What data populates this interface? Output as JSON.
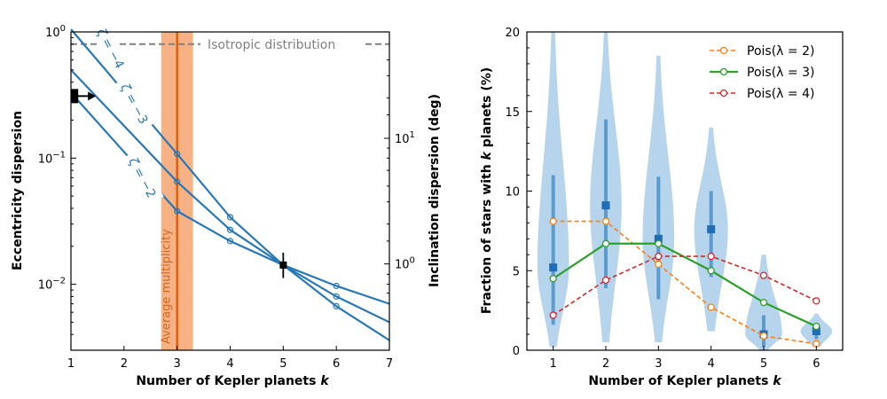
{
  "colors": {
    "blue": "#2878b5",
    "orange": "#ff7f0e",
    "green": "#2ca02c",
    "red": "#d62728",
    "gray": "#808080",
    "band": "#f4a46e",
    "band_line": "#e06010",
    "violin": "#a9cde8",
    "violin_dark": "#5b9bd0",
    "violin_marker": "#1f6db5"
  },
  "chart_data": [
    {
      "type": "line",
      "xlabel": "Number of Kepler planets k",
      "ylabel": "Eccentricity dispersion",
      "ylabel_right": "Inclination dispersion (deg)",
      "xlim": [
        1,
        7
      ],
      "ylim": [
        0.003,
        1
      ],
      "yscale": "log",
      "x_ticks": [
        "1",
        "2",
        "3",
        "4",
        "5",
        "6",
        "7"
      ],
      "y_ticks": [
        {
          "value": 0.01,
          "base": "10",
          "exp": "−2"
        },
        {
          "value": 0.1,
          "base": "10",
          "exp": "−1"
        },
        {
          "value": 1,
          "base": "10",
          "exp": "0"
        }
      ],
      "y_right_ticks": [
        {
          "value": 0.0145,
          "base": "10",
          "exp": "0"
        },
        {
          "value": 0.1435,
          "base": "10",
          "exp": "1"
        }
      ],
      "series": [
        {
          "name": "ζ = −4",
          "zeta": "−4",
          "x": [
            1,
            3,
            4,
            5,
            6,
            7
          ],
          "y": [
            1.05,
            0.108,
            0.034,
            0.0142,
            0.0067,
            0.0036
          ],
          "label_pos": [
            1.75,
            0.74
          ]
        },
        {
          "name": "ζ = −3",
          "zeta": "−3",
          "x": [
            1,
            3,
            4,
            5,
            6,
            7
          ],
          "y": [
            0.5,
            0.065,
            0.027,
            0.0142,
            0.008,
            0.005
          ],
          "label_pos": [
            2.2,
            0.27
          ]
        },
        {
          "name": "ζ = −2",
          "zeta": "−2",
          "x": [
            1,
            3,
            4,
            5,
            6,
            7
          ],
          "y": [
            0.33,
            0.038,
            0.022,
            0.0142,
            0.0097,
            0.007
          ],
          "label_pos": [
            2.35,
            0.07
          ]
        }
      ],
      "isotropic": {
        "y": 0.8,
        "label": "Isotropic distribution"
      },
      "average_band": {
        "x_min": 2.7,
        "x_max": 3.3,
        "x": 3.0,
        "label": "Average multiplicity"
      },
      "point_k1": {
        "x": 1.07,
        "y": 0.31
      },
      "point_k5": {
        "x": 5.0,
        "y": 0.0142,
        "err_low": 0.0112,
        "err_high": 0.0178
      }
    },
    {
      "type": "violin",
      "xlabel": "Number of Kepler planets k",
      "ylabel": "Fraction of stars with k planets (%)",
      "xlim": [
        0.5,
        6.5
      ],
      "ylim": [
        0,
        20
      ],
      "x_ticks": [
        "1",
        "2",
        "3",
        "4",
        "5",
        "6"
      ],
      "y_ticks": [
        "0",
        "5",
        "10",
        "15",
        "20"
      ],
      "categories": [
        1,
        2,
        3,
        4,
        5,
        6
      ],
      "violins": [
        {
          "median": 5.2,
          "q1": 1.6,
          "q3": 11.0,
          "min": 0.2,
          "max": 20.0,
          "width": 0.3
        },
        {
          "median": 9.1,
          "q1": 3.9,
          "q3": 14.5,
          "min": 0.5,
          "max": 20.0,
          "width": 0.3
        },
        {
          "median": 7.0,
          "q1": 3.2,
          "q3": 10.9,
          "min": 0.5,
          "max": 18.5,
          "width": 0.3
        },
        {
          "median": 7.6,
          "q1": 4.6,
          "q3": 10.0,
          "min": 1.2,
          "max": 14.0,
          "width": 0.32
        },
        {
          "median": 1.0,
          "q1": 0.2,
          "q3": 2.2,
          "min": 0.0,
          "max": 6.0,
          "width": 0.35
        },
        {
          "median": 1.2,
          "q1": 0.7,
          "q3": 1.7,
          "min": 0.2,
          "max": 2.3,
          "width": 0.3
        }
      ],
      "series": [
        {
          "name": "Pois(λ = 2)",
          "style": "dashed",
          "values": [
            8.1,
            8.1,
            5.4,
            2.7,
            0.9,
            0.4
          ]
        },
        {
          "name": "Pois(λ = 3)",
          "style": "solid",
          "values": [
            4.5,
            6.7,
            6.7,
            5.0,
            3.0,
            1.5
          ]
        },
        {
          "name": "Pois(λ = 4)",
          "style": "dashed",
          "values": [
            2.2,
            4.4,
            5.9,
            5.9,
            4.7,
            3.1
          ]
        }
      ],
      "legend": "top-right"
    }
  ]
}
